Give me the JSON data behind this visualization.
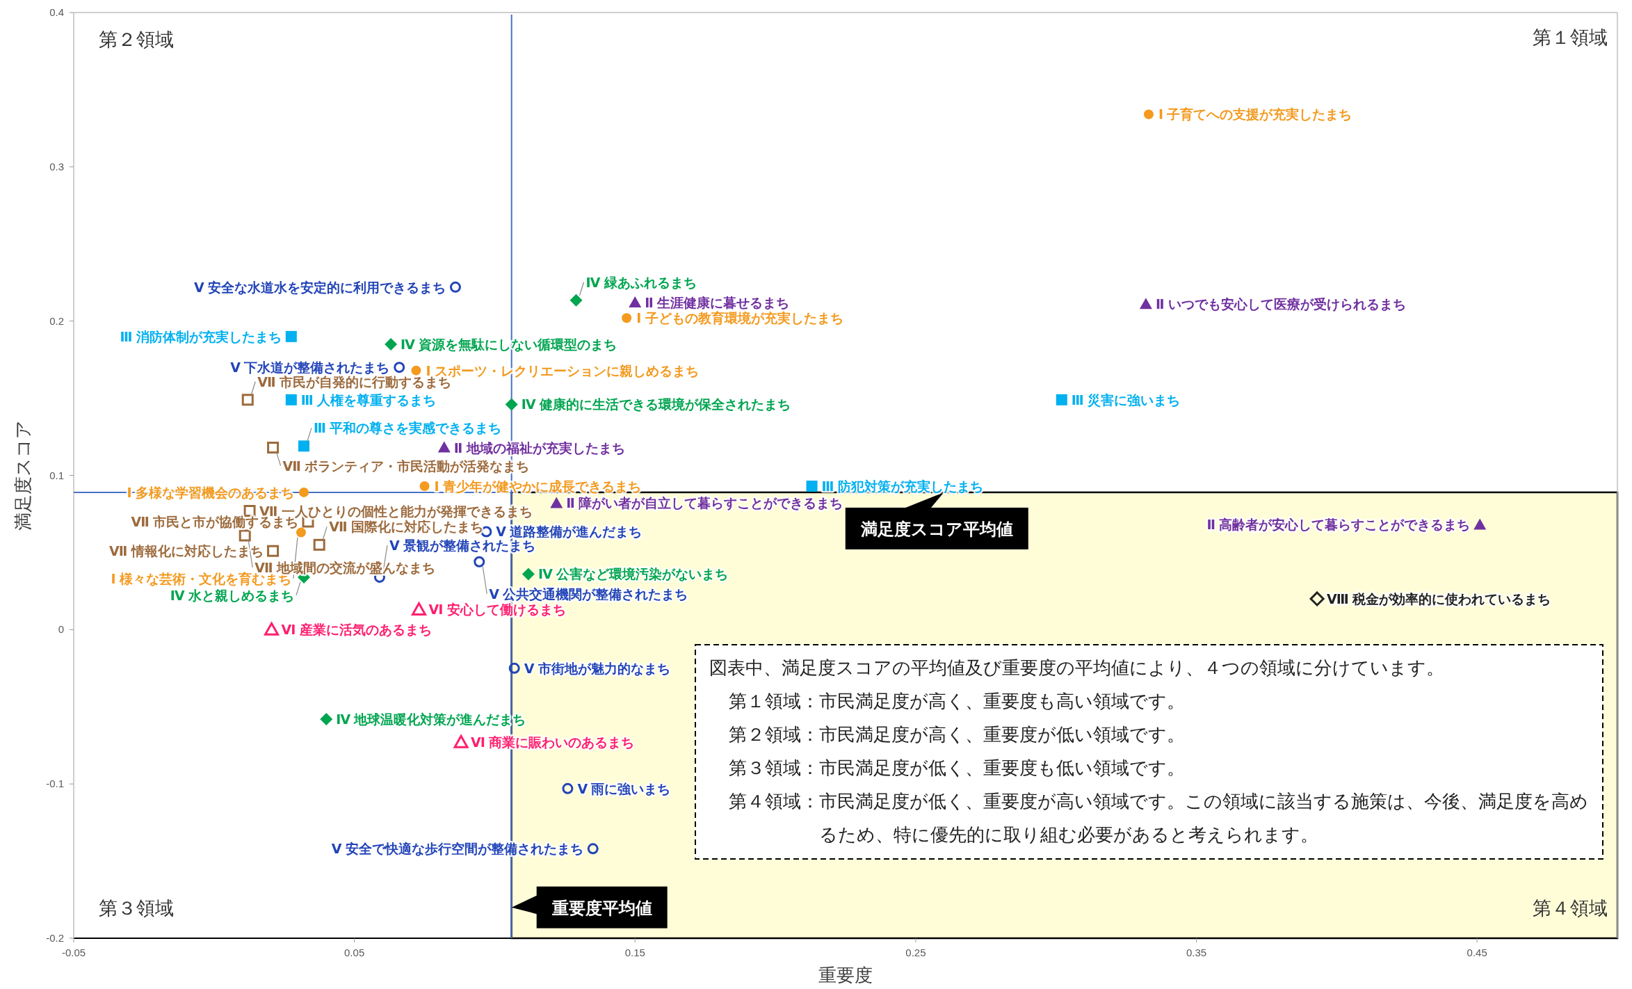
{
  "chart_data": {
    "type": "scatter",
    "xlabel": "重要度",
    "ylabel": "満足度スコア",
    "xlim": [
      -0.05,
      0.5
    ],
    "ylim": [
      -0.2,
      0.4
    ],
    "xticks": [
      -0.05,
      0.05,
      0.15,
      0.25,
      0.35,
      0.45
    ],
    "yticks": [
      -0.2,
      -0.1,
      0,
      0.1,
      0.2,
      0.3,
      0.4
    ],
    "grid": false,
    "ref_lines": [
      {
        "axis": "x",
        "value": 0.106,
        "color": "#4472c4"
      },
      {
        "axis": "y",
        "value": 0.089,
        "color": "#4472c4"
      }
    ],
    "bands": [
      {
        "axis": "x",
        "from": 0.106,
        "to": 0.5,
        "color": "#fffdd8"
      }
    ],
    "annotations": [
      "第１領域",
      "第２領域",
      "第３領域",
      "第４領域",
      {
        "text": "満足度スコア平均値",
        "x": 0.26,
        "y": 0.089
      },
      {
        "text": "重要度平均値",
        "x": 0.106,
        "y": -0.18
      },
      "図表中、満足度スコアの平均値及び重要度の平均値により、４つの領域に分けています。",
      "第１領域：市民満足度が高く、重要度も高い領域です。",
      "第２領域：市民満足度が高く、重要度が低い領域です。",
      "第３領域：市民満足度が低く、重要度も低い領域です。",
      "第４領域：市民満足度が低く、重要度が高い領域です。この領域に該当する施策は、今後、満足度を高めるため、特に優先的に取り組む必要があると考えられます。"
    ],
    "series": [
      {
        "color": "#f39a1f",
        "marker": "circle",
        "x": [
          0.333,
          0.147,
          0.072,
          0.032,
          0.075,
          0.031
        ],
        "values": [
          0.334,
          0.202,
          0.168,
          0.089,
          0.093,
          0.063
        ],
        "value_labels": [
          "Ⅰ 子育てへの支援が充実したまち",
          "Ⅰ 子どもの教育環境が充実したまち",
          "Ⅰ スポーツ・レクリエーションに親しめるまち",
          "Ⅰ 多様な学習機会のあるまち",
          "Ⅰ 青少年が健やかに成長できるまち",
          "Ⅰ 様々な芸術・文化を育むまち"
        ]
      },
      {
        "color": "#7030a0",
        "marker": "triangle",
        "x": [
          0.15,
          0.332,
          0.082,
          0.122,
          0.451
        ],
        "values": [
          0.212,
          0.211,
          0.118,
          0.082,
          0.068
        ],
        "value_labels": [
          "Ⅱ 生涯健康に暮せるまち",
          "Ⅱ いつでも安心して医療が受けられるまち",
          "Ⅱ 地域の福祉が充実したまち",
          "Ⅱ 障がい者が自立して暮らすことができるまち",
          "Ⅱ 高齢者が安心して暮らすことができるまち"
        ]
      },
      {
        "color": "#00b0f0",
        "marker": "square",
        "x": [
          0.0275,
          0.0275,
          0.032,
          0.302,
          0.213
        ],
        "values": [
          0.19,
          0.149,
          0.119,
          0.149,
          0.093
        ],
        "value_labels": [
          "Ⅲ 消防体制が充実したまち",
          "Ⅲ 人権を尊重するまち",
          "Ⅲ 平和の尊さを実感できるまち",
          "Ⅲ 災害に強いまち",
          "Ⅲ 防犯対策が充実したまち"
        ]
      },
      {
        "color": "#00a550",
        "marker": "diamond",
        "x": [
          0.129,
          0.063,
          0.106,
          0.032,
          0.112,
          0.04
        ],
        "values": [
          0.2135,
          0.185,
          0.146,
          0.034,
          0.036,
          -0.058
        ],
        "value_labels": [
          "Ⅳ 緑あふれるまち",
          "Ⅳ 資源を無駄にしない循環型のまち",
          "Ⅳ 健康的に生活できる環境が保全されたまち",
          "Ⅳ 水と親しめるまち",
          "Ⅳ 公害など環境汚染がないまち",
          "Ⅳ 地球温暖化対策が進んだまち"
        ]
      },
      {
        "color": "#2244b8",
        "marker": "circle-open",
        "x": [
          0.086,
          0.066,
          0.097,
          0.0945,
          0.059,
          0.107,
          0.126,
          0.135
        ],
        "values": [
          0.222,
          0.17,
          0.0635,
          0.044,
          0.034,
          -0.025,
          -0.103,
          -0.142
        ],
        "value_labels": [
          "Ⅴ 安全な水道水を安定的に利用できるまち",
          "Ⅴ 下水道が整備されたまち",
          "Ⅴ 道路整備が進んだまち",
          "Ⅴ 公共交通機関が整備されたまち",
          "Ⅴ 景観が整備されたまち",
          "Ⅴ 市街地が魅力的なまち",
          "Ⅴ 雨に強いまち",
          "Ⅴ 安全で快適な歩行空間が整備されたまち"
        ]
      },
      {
        "color": "#ff1f6f",
        "marker": "triangle-open",
        "x": [
          0.073,
          0.0205,
          0.088
        ],
        "values": [
          0.013,
          0.0,
          -0.073
        ],
        "value_labels": [
          "Ⅵ 安心して働けるまち",
          "Ⅵ 産業に活気のあるまち",
          "Ⅵ 商業に賑わいのあるまち"
        ]
      },
      {
        "color": "#9c6a3c",
        "marker": "square-open",
        "x": [
          0.012,
          0.021,
          0.0127,
          0.011,
          0.021,
          0.0335,
          0.0375
        ],
        "values": [
          0.149,
          0.118,
          0.077,
          0.061,
          0.051,
          0.07,
          0.055
        ],
        "value_labels": [
          "Ⅶ 市民が自発的に行動するまち",
          "Ⅶ ボランティア・市民活動が活発なまち",
          "Ⅶ 一人ひとりの個性と能力が発揮できるまち",
          "Ⅶ 地域間の交流が盛んなまち",
          "Ⅶ 情報化に対応したまち",
          "Ⅶ 市民と市が協働するまち",
          "Ⅶ 国際化に対応したまち"
        ]
      },
      {
        "color": "#222222",
        "marker": "diamond-open",
        "x": [
          0.393
        ],
        "values": [
          0.02
        ],
        "value_labels": [
          "Ⅷ 税金が効率的に使われているまち"
        ]
      }
    ]
  }
}
